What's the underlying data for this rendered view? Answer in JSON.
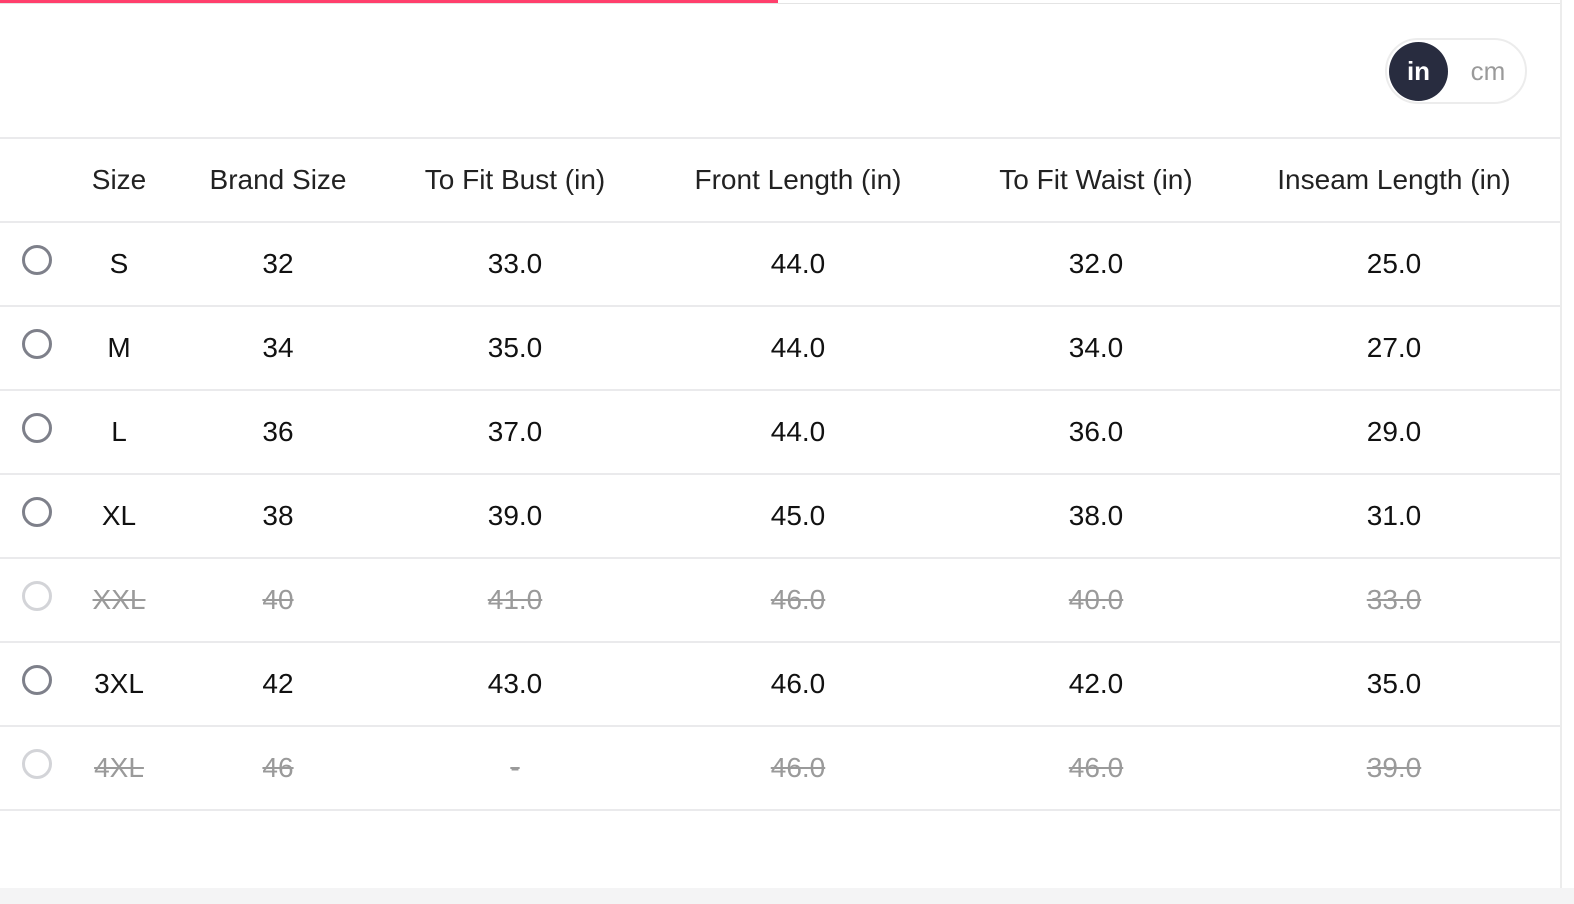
{
  "colors": {
    "accent": "#ff3f6c",
    "toggle_active": "#282c3f"
  },
  "progress_percent": 49,
  "unit_toggle": {
    "options": [
      "in",
      "cm"
    ],
    "selected": "in"
  },
  "table": {
    "headers": [
      "Size",
      "Brand Size",
      "To Fit Bust (in)",
      "Front Length (in)",
      "To Fit Waist (in)",
      "Inseam Length (in)"
    ],
    "rows": [
      {
        "available": true,
        "cells": [
          "S",
          "32",
          "33.0",
          "44.0",
          "32.0",
          "25.0"
        ]
      },
      {
        "available": true,
        "cells": [
          "M",
          "34",
          "35.0",
          "44.0",
          "34.0",
          "27.0"
        ]
      },
      {
        "available": true,
        "cells": [
          "L",
          "36",
          "37.0",
          "44.0",
          "36.0",
          "29.0"
        ]
      },
      {
        "available": true,
        "cells": [
          "XL",
          "38",
          "39.0",
          "45.0",
          "38.0",
          "31.0"
        ]
      },
      {
        "available": false,
        "cells": [
          "XXL",
          "40",
          "41.0",
          "46.0",
          "40.0",
          "33.0"
        ]
      },
      {
        "available": true,
        "cells": [
          "3XL",
          "42",
          "43.0",
          "46.0",
          "42.0",
          "35.0"
        ]
      },
      {
        "available": false,
        "cells": [
          "4XL",
          "46",
          "-",
          "46.0",
          "46.0",
          "39.0"
        ]
      }
    ]
  }
}
